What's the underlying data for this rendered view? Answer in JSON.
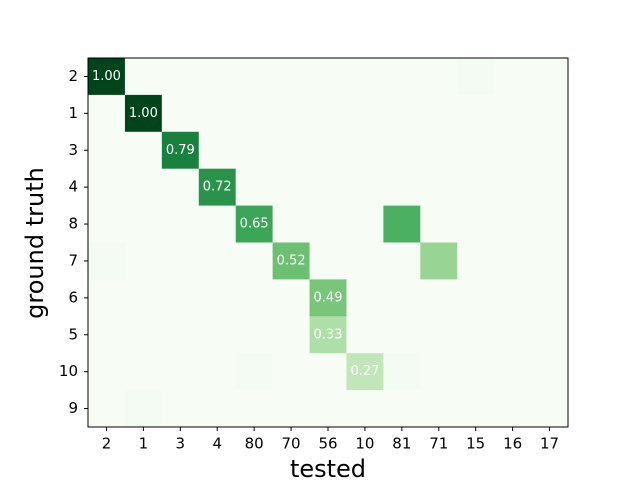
{
  "chart_data": {
    "type": "heatmap",
    "x_label": "tested",
    "y_label": "ground truth",
    "columns": [
      "2",
      "1",
      "3",
      "4",
      "80",
      "70",
      "56",
      "10",
      "81",
      "71",
      "15",
      "16",
      "17"
    ],
    "rows": [
      "2",
      "1",
      "3",
      "4",
      "8",
      "7",
      "6",
      "5",
      "10",
      "9"
    ],
    "values": [
      [
        1.0,
        0,
        0,
        0,
        0,
        0,
        0,
        0,
        0,
        0,
        0.02,
        0,
        0
      ],
      [
        0,
        1.0,
        0,
        0,
        0,
        0,
        0,
        0,
        0,
        0,
        0,
        0,
        0
      ],
      [
        0,
        0,
        0.79,
        0,
        0,
        0,
        0,
        0,
        0,
        0,
        0,
        0,
        0
      ],
      [
        0,
        0,
        0,
        0.72,
        0,
        0,
        0,
        0,
        0,
        0,
        0,
        0,
        0
      ],
      [
        0,
        0,
        0,
        0,
        0.65,
        0,
        0,
        0,
        0.6,
        0,
        0,
        0,
        0
      ],
      [
        0.02,
        0,
        0,
        0,
        0,
        0.52,
        0,
        0,
        0,
        0.4,
        0,
        0,
        0
      ],
      [
        0,
        0,
        0,
        0,
        0,
        0,
        0.49,
        0,
        0,
        0,
        0,
        0,
        0
      ],
      [
        0,
        0,
        0,
        0,
        0,
        0,
        0.33,
        0,
        0,
        0,
        0,
        0,
        0
      ],
      [
        0,
        0,
        0,
        0,
        0.02,
        0,
        0,
        0.27,
        0.02,
        0,
        0,
        0,
        0
      ],
      [
        0,
        0.02,
        0,
        0,
        0,
        0,
        0,
        0,
        0,
        0,
        0,
        0,
        0
      ]
    ],
    "value_labels": [
      [
        "1.00",
        null,
        null,
        null,
        null,
        null,
        null,
        null,
        null,
        null,
        null,
        null,
        null
      ],
      [
        null,
        "1.00",
        null,
        null,
        null,
        null,
        null,
        null,
        null,
        null,
        null,
        null,
        null
      ],
      [
        null,
        null,
        "0.79",
        null,
        null,
        null,
        null,
        null,
        null,
        null,
        null,
        null,
        null
      ],
      [
        null,
        null,
        null,
        "0.72",
        null,
        null,
        null,
        null,
        null,
        null,
        null,
        null,
        null
      ],
      [
        null,
        null,
        null,
        null,
        "0.65",
        null,
        null,
        null,
        null,
        null,
        null,
        null,
        null
      ],
      [
        null,
        null,
        null,
        null,
        null,
        "0.52",
        null,
        null,
        null,
        null,
        null,
        null,
        null
      ],
      [
        null,
        null,
        null,
        null,
        null,
        null,
        "0.49",
        null,
        null,
        null,
        null,
        null,
        null
      ],
      [
        null,
        null,
        null,
        null,
        null,
        null,
        "0.33",
        null,
        null,
        null,
        null,
        null,
        null
      ],
      [
        null,
        null,
        null,
        null,
        null,
        null,
        null,
        "0.27",
        null,
        null,
        null,
        null,
        null
      ],
      [
        null,
        null,
        null,
        null,
        null,
        null,
        null,
        null,
        null,
        null,
        null,
        null,
        null
      ]
    ],
    "vlim": [
      0,
      1
    ],
    "colormap": [
      "#f7fcf5",
      "#e5f5e0",
      "#c7e9c0",
      "#a1d99b",
      "#74c476",
      "#41ab5d",
      "#238b45",
      "#006d2c",
      "#00441b"
    ],
    "label_color": "#ffffff"
  }
}
